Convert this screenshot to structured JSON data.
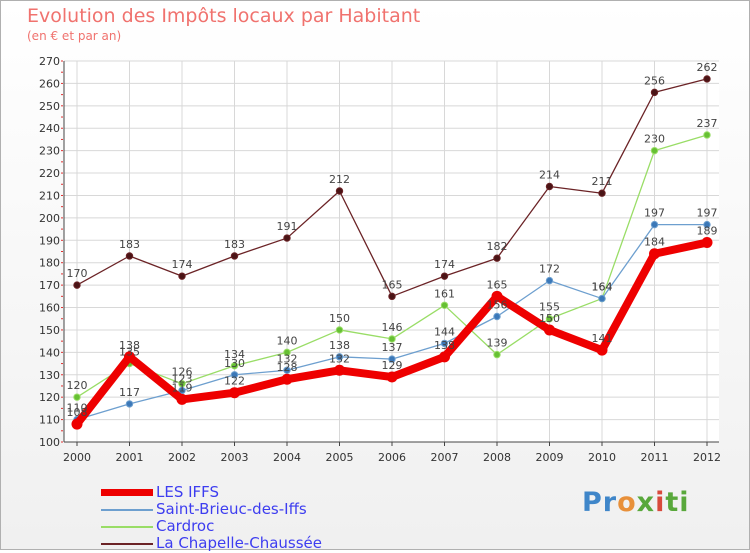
{
  "title": "Evolution des Impôts locaux par Habitant",
  "subtitle": "(en € et par an)",
  "logo": {
    "parts": [
      "Pr",
      "o",
      "x",
      "i",
      "ti"
    ]
  },
  "colors": {
    "title": "#f0726e",
    "legend_text": "#3d3df0",
    "grid": "#d8d8d8",
    "axis_tick_red": "#e03030"
  },
  "chart_data": {
    "type": "line",
    "title": "Evolution des Impôts locaux par Habitant",
    "ylabel": "(en € et par an)",
    "xlabel": "",
    "categories": [
      "2000",
      "2001",
      "2002",
      "2003",
      "2004",
      "2005",
      "2006",
      "2007",
      "2008",
      "2009",
      "2010",
      "2011",
      "2012"
    ],
    "ylim": [
      100,
      270
    ],
    "yticks": [
      100,
      110,
      120,
      130,
      140,
      150,
      160,
      170,
      180,
      190,
      200,
      210,
      220,
      230,
      240,
      250,
      260,
      270
    ],
    "grid": true,
    "legend_position": "bottom-left",
    "series": [
      {
        "name": "LES IFFS",
        "color": "#ee0000",
        "values": [
          108,
          138,
          119,
          122,
          128,
          132,
          129,
          138,
          165,
          150,
          141,
          184,
          189
        ],
        "labels": [
          "108",
          "138",
          "119",
          "122",
          "128",
          "132",
          "129",
          "138",
          "165",
          "150",
          "141",
          "184",
          "189"
        ]
      },
      {
        "name": "Saint-Brieuc-des-Iffs",
        "color": "#6d9fcf",
        "values": [
          110,
          117,
          123,
          130,
          132,
          138,
          137,
          144,
          156,
          172,
          164,
          197,
          197
        ],
        "labels": [
          "110",
          "117",
          "123",
          "130",
          "132",
          "138",
          "137",
          "144",
          "156",
          "172",
          "164",
          "197",
          "197"
        ]
      },
      {
        "name": "Cardroc",
        "color": "#99dd66",
        "values": [
          120,
          135,
          126,
          134,
          140,
          150,
          146,
          161,
          139,
          155,
          164,
          230,
          237
        ],
        "labels": [
          "120",
          "135",
          "126",
          "134",
          "140",
          "150",
          "146",
          "161",
          "139",
          "155",
          "164",
          "230",
          "237"
        ]
      },
      {
        "name": "La Chapelle-Chaussée",
        "color": "#6b2326",
        "values": [
          170,
          183,
          174,
          183,
          191,
          212,
          165,
          174,
          182,
          214,
          211,
          256,
          262
        ],
        "labels": [
          "170",
          "183",
          "174",
          "183",
          "191",
          "212",
          "165",
          "174",
          "182",
          "214",
          "211",
          "256",
          "262"
        ]
      }
    ]
  }
}
